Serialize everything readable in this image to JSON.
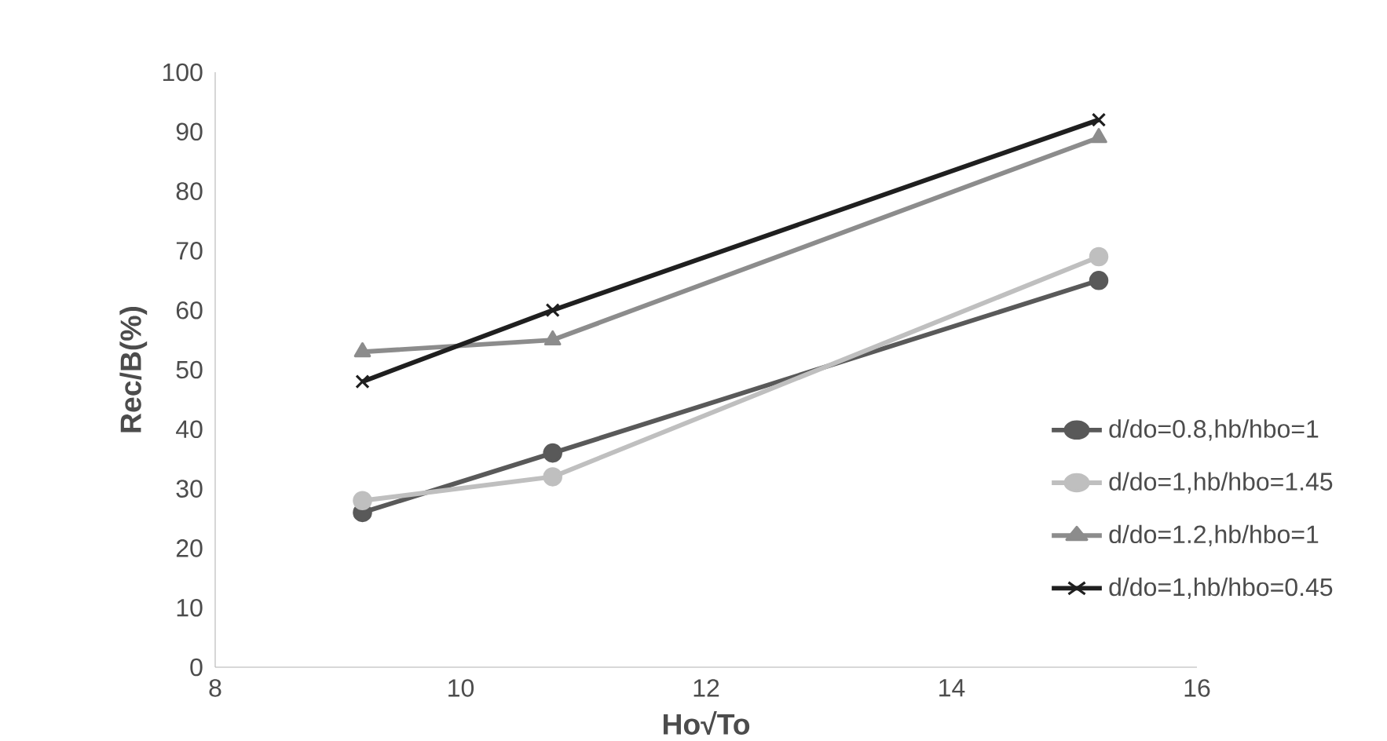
{
  "chart_data": {
    "type": "line",
    "xlabel": "Ho√To",
    "ylabel": "Rec/B(%)",
    "xlim": [
      8,
      16
    ],
    "xticks": [
      8,
      10,
      12,
      14,
      16
    ],
    "ylim": [
      0,
      100
    ],
    "yticks": [
      0,
      10,
      20,
      30,
      40,
      50,
      60,
      70,
      80,
      90,
      100
    ],
    "grid": false,
    "legend": "right",
    "series": [
      {
        "name": "d/do=0.8,hb/hbo=1",
        "color": "#595959",
        "marker": "circle",
        "x": [
          9.2,
          10.75,
          15.2
        ],
        "values": [
          26,
          36,
          65
        ]
      },
      {
        "name": "d/do=1,hb/hbo=1.45",
        "color": "#bfbfbf",
        "marker": "circle",
        "x": [
          9.2,
          10.75,
          15.2
        ],
        "values": [
          28,
          32,
          69
        ]
      },
      {
        "name": "d/do=1.2,hb/hbo=1",
        "color": "#8c8c8c",
        "marker": "triangle",
        "x": [
          9.2,
          10.75,
          15.2
        ],
        "values": [
          53,
          55,
          89
        ]
      },
      {
        "name": "d/do=1,hb/hbo=0.45",
        "color": "#1f1f1f",
        "marker": "cross",
        "x": [
          9.2,
          10.75,
          15.2
        ],
        "values": [
          48,
          60,
          92
        ]
      }
    ]
  }
}
